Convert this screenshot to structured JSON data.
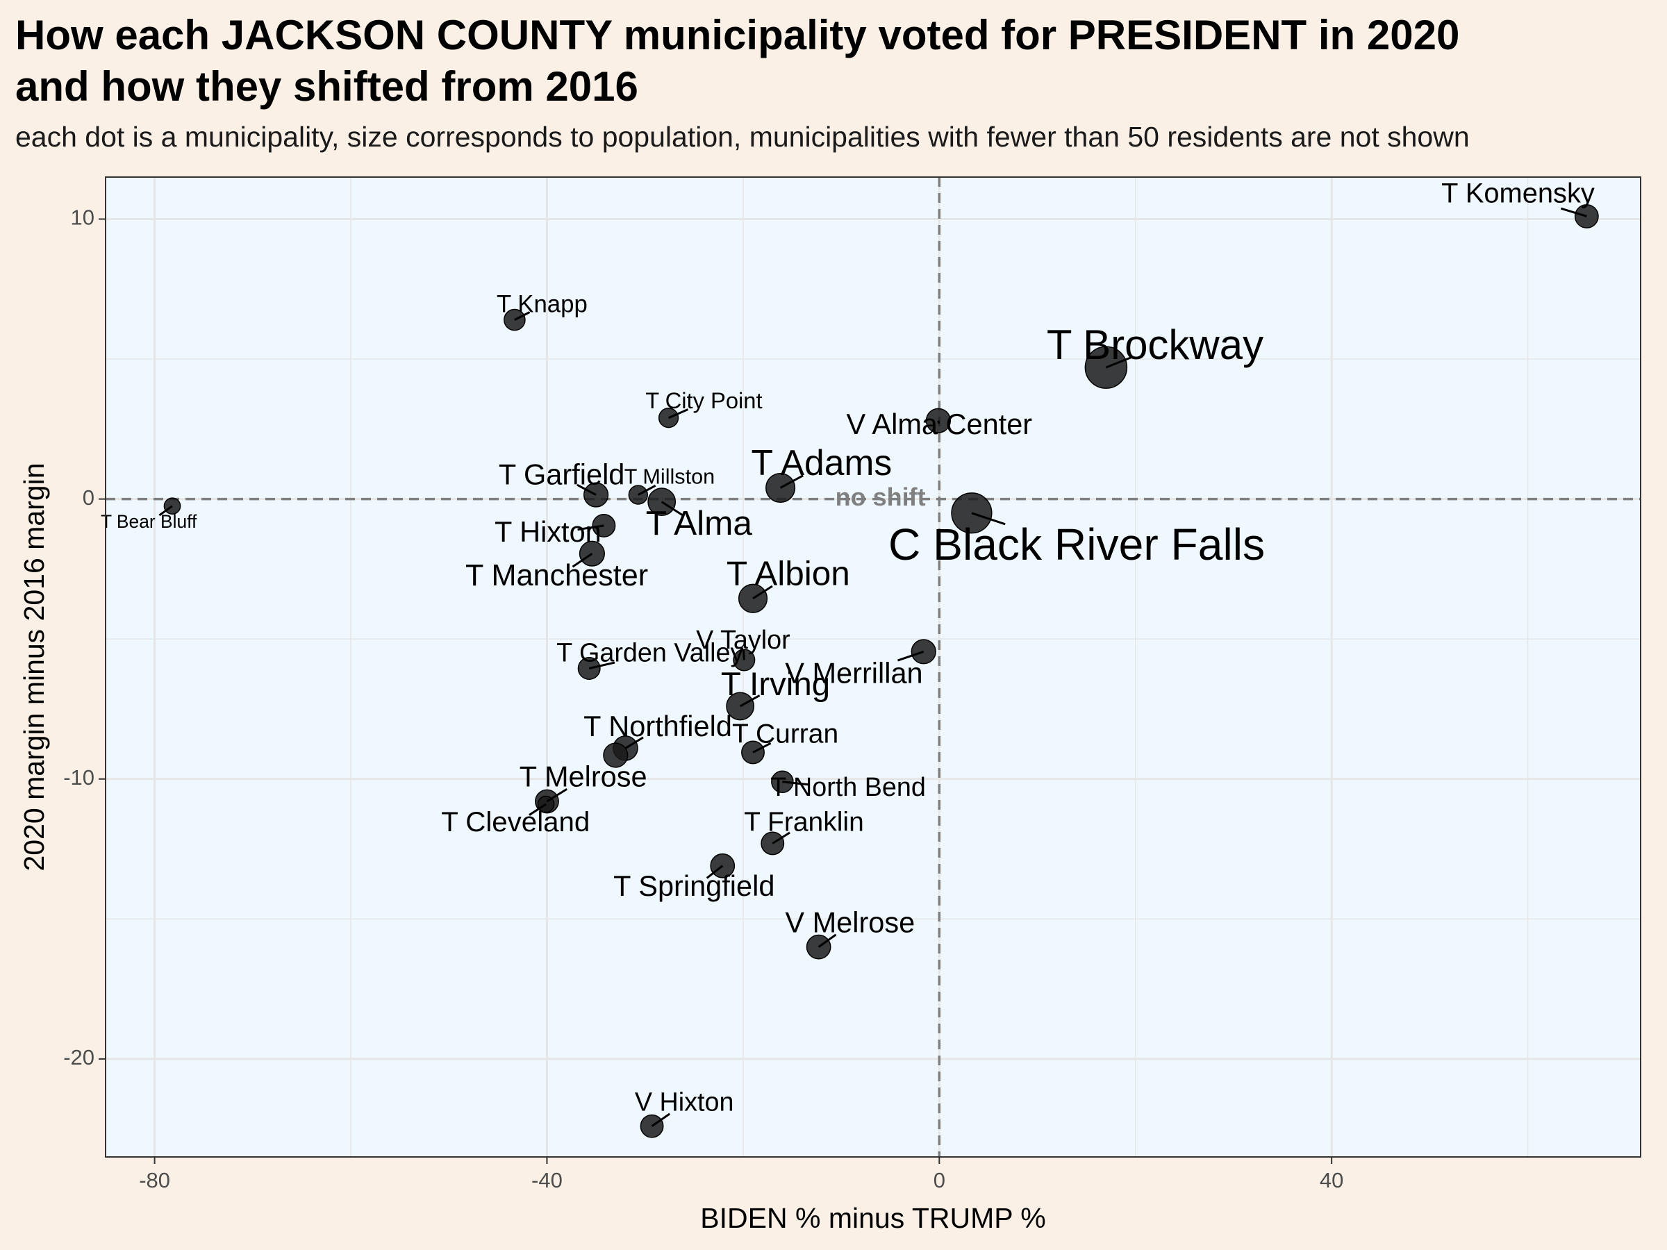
{
  "title_line1": "How each JACKSON COUNTY municipality voted for PRESIDENT in 2020",
  "title_line2": "and how they shifted from 2016",
  "subtitle": "each dot is a municipality, size corresponds to population, municipalities with fewer than 50 residents are not shown",
  "colors": {
    "page_background": "#faf0e6",
    "panel_background": "#f0f8ff",
    "grid": "#e6e6e6",
    "point": "#1a1a1a",
    "reference_line": "#7f7f7f",
    "annotation": "#7f7f7f"
  },
  "chart_data": {
    "type": "scatter",
    "xlabel": "BIDEN % minus TRUMP %",
    "ylabel": "2020 margin minus 2016 margin",
    "xlim": [
      -85,
      71.5
    ],
    "ylim": [
      -23.5,
      11.5
    ],
    "x_ticks": [
      -80,
      -40,
      0,
      40
    ],
    "x_tick_labels": [
      "-80",
      "-40",
      "0",
      "40"
    ],
    "y_ticks": [
      10,
      0,
      -10,
      -20
    ],
    "y_tick_labels": [
      "10",
      "0",
      "-10",
      "-20"
    ],
    "grid": true,
    "reference_lines": {
      "x": 0,
      "y": 0,
      "style": "dashed"
    },
    "annotations": [
      {
        "text": "no shift",
        "x": -6,
        "y": 0
      }
    ],
    "points": [
      {
        "label": "T Komensky",
        "x": 66,
        "y": 10.1,
        "size": 0.42,
        "label_x": 59,
        "label_y": 10.85,
        "label_size": 0.52
      },
      {
        "label": "T Brockway",
        "x": 17,
        "y": 4.7,
        "size": 1.0,
        "label_x": 22,
        "label_y": 5.4,
        "label_size": 1.0
      },
      {
        "label": "V Alma Center",
        "x": -0.1,
        "y": 2.8,
        "size": 0.45,
        "label_x": 0,
        "label_y": 2.6,
        "label_size": 0.56
      },
      {
        "label": "T Knapp",
        "x": -43.3,
        "y": 6.4,
        "size": 0.35,
        "label_x": -40.5,
        "label_y": 6.9,
        "label_size": 0.4
      },
      {
        "label": "T City Point",
        "x": -27.6,
        "y": 2.9,
        "size": 0.3,
        "label_x": -24,
        "label_y": 3.45,
        "label_size": 0.35
      },
      {
        "label": "T Adams",
        "x": -16.2,
        "y": 0.4,
        "size": 0.6,
        "label_x": -12,
        "label_y": 1.2,
        "label_size": 0.8
      },
      {
        "label": "C Black River Falls",
        "x": 3.3,
        "y": -0.5,
        "size": 0.95,
        "label_x": 14,
        "label_y": -1.75,
        "label_size": 1.1
      },
      {
        "label": "T Garfield",
        "x": -35,
        "y": 0.15,
        "size": 0.45,
        "label_x": -38.5,
        "label_y": 0.8,
        "label_size": 0.56
      },
      {
        "label": "T Millston",
        "x": -30.7,
        "y": 0.15,
        "size": 0.28,
        "label_x": -27.5,
        "label_y": 0.75,
        "label_size": 0.3
      },
      {
        "label": "T Alma",
        "x": -28.3,
        "y": -0.1,
        "size": 0.55,
        "label_x": -24.5,
        "label_y": -0.95,
        "label_size": 0.75
      },
      {
        "label": "T Bear Bluff",
        "x": -78.2,
        "y": -0.25,
        "size": 0.2,
        "label_x": -80.6,
        "label_y": -0.85,
        "label_size": 0.2
      },
      {
        "label": "T Hixton",
        "x": -34.2,
        "y": -0.95,
        "size": 0.4,
        "label_x": -39.9,
        "label_y": -1.25,
        "label_size": 0.56
      },
      {
        "label": "T Manchester",
        "x": -35.4,
        "y": -1.95,
        "size": 0.47,
        "label_x": -39,
        "label_y": -2.8,
        "label_size": 0.6
      },
      {
        "label": "T Albion",
        "x": -19,
        "y": -3.55,
        "size": 0.58,
        "label_x": -15.4,
        "label_y": -2.75,
        "label_size": 0.75
      },
      {
        "label": "T Garden Valley",
        "x": -35.7,
        "y": -6.05,
        "size": 0.38,
        "label_x": -29.5,
        "label_y": -5.55,
        "label_size": 0.47
      },
      {
        "label": "V Taylor",
        "x": -19.9,
        "y": -5.75,
        "size": 0.36,
        "label_x": -20,
        "label_y": -5.1,
        "label_size": 0.47
      },
      {
        "label": "V Merrillan",
        "x": -1.6,
        "y": -5.45,
        "size": 0.45,
        "label_x": -8.7,
        "label_y": -6.3,
        "label_size": 0.56
      },
      {
        "label": "T Irving",
        "x": -20.3,
        "y": -7.4,
        "size": 0.55,
        "label_x": -16.7,
        "label_y": -6.7,
        "label_size": 0.7
      },
      {
        "label": "T Northfield",
        "x": -32,
        "y": -8.9,
        "size": 0.46,
        "label_x": -28.7,
        "label_y": -8.2,
        "label_size": 0.56
      },
      {
        "label": "T Northfield",
        "x": -33,
        "y": -9.15,
        "size": 0.45,
        "label_x": -33,
        "label_y": -9.15,
        "label_size": 0
      },
      {
        "label": "T Curran",
        "x": -19,
        "y": -9.05,
        "size": 0.4,
        "label_x": -15.7,
        "label_y": -8.45,
        "label_size": 0.5
      },
      {
        "label": "T North Bend",
        "x": -16,
        "y": -10.1,
        "size": 0.37,
        "label_x": -9.3,
        "label_y": -10.35,
        "label_size": 0.47
      },
      {
        "label": "T Melrose",
        "x": -40,
        "y": -10.8,
        "size": 0.42,
        "label_x": -36.3,
        "label_y": -10,
        "label_size": 0.56
      },
      {
        "label": "T Cleveland",
        "x": -40.1,
        "y": -10.9,
        "size": 0.2,
        "label_x": -43.2,
        "label_y": -11.6,
        "label_size": 0.53
      },
      {
        "label": "T Franklin",
        "x": -17,
        "y": -12.3,
        "size": 0.4,
        "label_x": -13.8,
        "label_y": -11.6,
        "label_size": 0.5
      },
      {
        "label": "T Springfield",
        "x": -22.1,
        "y": -13.1,
        "size": 0.44,
        "label_x": -25,
        "label_y": -13.9,
        "label_size": 0.56
      },
      {
        "label": "V Melrose",
        "x": -12.3,
        "y": -16,
        "size": 0.44,
        "label_x": -9.1,
        "label_y": -15.2,
        "label_size": 0.56
      },
      {
        "label": "V Hixton",
        "x": -29.3,
        "y": -22.4,
        "size": 0.4,
        "label_x": -26,
        "label_y": -21.6,
        "label_size": 0.47
      }
    ]
  }
}
